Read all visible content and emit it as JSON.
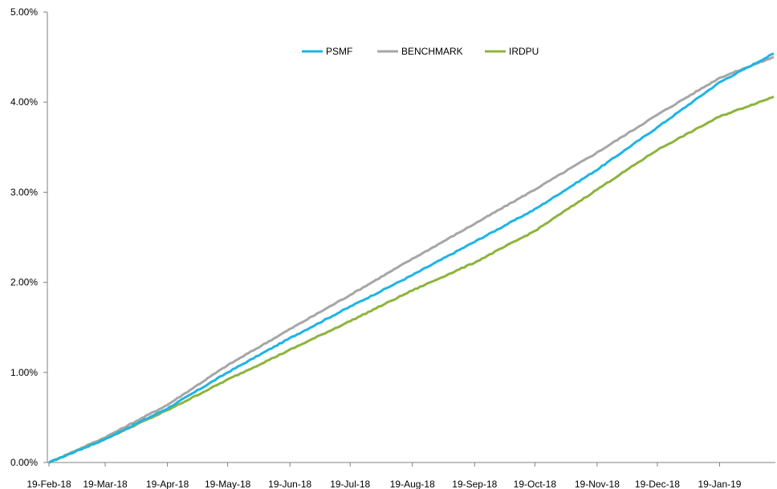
{
  "chart_data": {
    "type": "line",
    "title": "",
    "xlabel": "",
    "ylabel": "",
    "ylim": [
      0,
      0.05
    ],
    "y_ticks": [
      {
        "value": 0.0,
        "label": "0.00%"
      },
      {
        "value": 0.01,
        "label": "1.00%"
      },
      {
        "value": 0.02,
        "label": "2.00%"
      },
      {
        "value": 0.03,
        "label": "3.00%"
      },
      {
        "value": 0.04,
        "label": "4.00%"
      },
      {
        "value": 0.05,
        "label": "5.00%"
      }
    ],
    "x_tick_labels": [
      "19-Feb-18",
      "19-Mar-18",
      "19-Apr-18",
      "19-May-18",
      "19-Jun-18",
      "19-Jul-18",
      "19-Aug-18",
      "19-Sep-18",
      "19-Oct-18",
      "19-Nov-18",
      "19-Dec-18",
      "19-Jan-19"
    ],
    "x_dates": [
      "2018-02-19",
      "2018-03-19",
      "2018-04-19",
      "2018-05-19",
      "2018-06-19",
      "2018-07-19",
      "2018-08-19",
      "2018-09-19",
      "2018-10-19",
      "2018-11-19",
      "2018-12-19",
      "2019-01-19",
      "2019-02-15"
    ],
    "grid": false,
    "legend_position": "top-center",
    "series": [
      {
        "name": "PSMF",
        "color": "#1EB4E6",
        "values": [
          0.0,
          0.0026,
          0.006,
          0.01,
          0.0138,
          0.0173,
          0.0208,
          0.0245,
          0.0281,
          0.0325,
          0.0372,
          0.0422,
          0.0454
        ]
      },
      {
        "name": "BENCHMARK",
        "color": "#A6A6A6",
        "values": [
          0.0,
          0.0028,
          0.0064,
          0.0108,
          0.0148,
          0.0186,
          0.0226,
          0.0265,
          0.0303,
          0.0344,
          0.0386,
          0.0427,
          0.045
        ]
      },
      {
        "name": "IRDPU",
        "color": "#8CB43C",
        "values": [
          0.0,
          0.0026,
          0.0058,
          0.0092,
          0.0125,
          0.0157,
          0.0191,
          0.0222,
          0.0257,
          0.0303,
          0.0347,
          0.0384,
          0.0406
        ]
      }
    ]
  }
}
